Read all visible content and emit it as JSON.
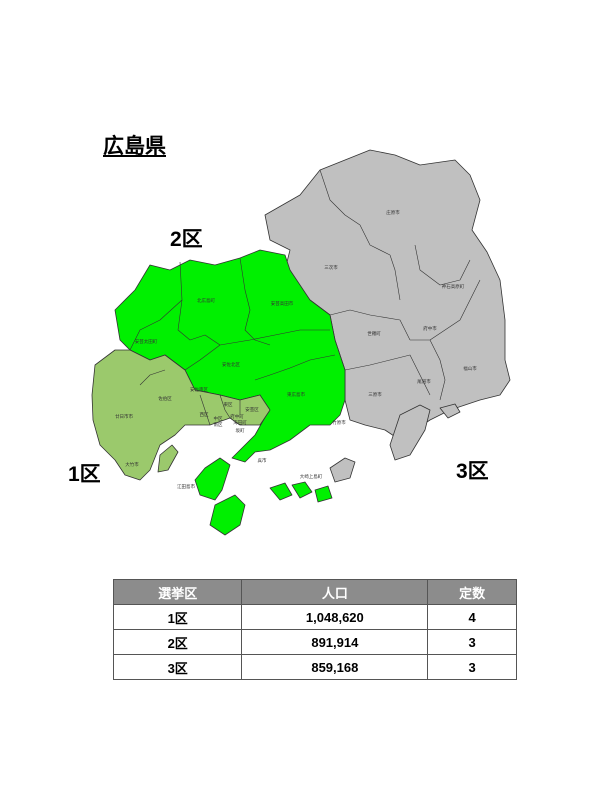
{
  "title": "広島県",
  "colors": {
    "district1": "#9bc96c",
    "district2": "#00f000",
    "district3": "#c0c0c0",
    "table_header": "#8c8c8c"
  },
  "districts": {
    "d1": {
      "label": "1区",
      "municipalities": [
        "佐伯区",
        "廿日市市",
        "大竹市",
        "西区",
        "中区",
        "南区",
        "東区",
        "安芸区",
        "府中町",
        "海田町",
        "坂町",
        "江田島市"
      ]
    },
    "d2": {
      "label": "2区",
      "municipalities": [
        "北広島町",
        "安芸高田市",
        "安芸太田町",
        "安佐北区",
        "安佐南区",
        "東広島市",
        "呉市",
        "大崎上島町"
      ]
    },
    "d3": {
      "label": "3区",
      "municipalities": [
        "庄原市",
        "三次市",
        "神石高原町",
        "世羅町",
        "府中市",
        "尾道市",
        "福山市",
        "三原市",
        "竹原市"
      ]
    }
  },
  "table": {
    "headers": [
      "選挙区",
      "人口",
      "定数"
    ],
    "rows": [
      [
        "1区",
        "1,048,620",
        "4"
      ],
      [
        "2区",
        "891,914",
        "3"
      ],
      [
        "3区",
        "859,168",
        "3"
      ]
    ]
  }
}
